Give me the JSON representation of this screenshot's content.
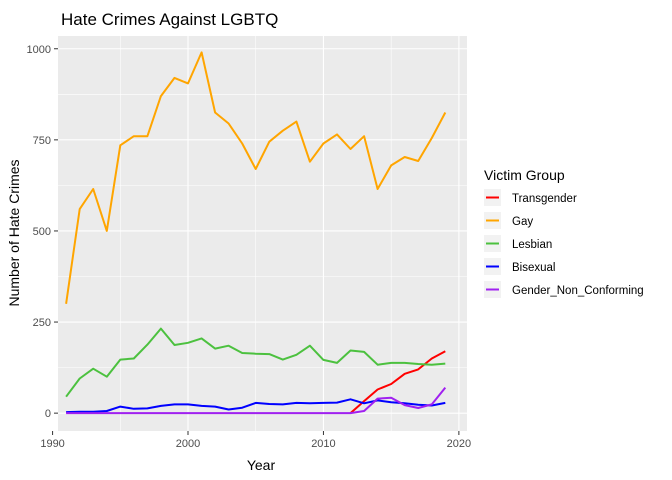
{
  "chart_data": {
    "type": "line",
    "title": "Hate Crimes Against LGBTQ",
    "xlabel": "Year",
    "ylabel": "Number of Hate Crimes",
    "xlim": [
      1990.4,
      2020.6
    ],
    "ylim": [
      -49,
      1035
    ],
    "x_ticks": [
      1990,
      2000,
      2010,
      2020
    ],
    "y_ticks": [
      0,
      250,
      500,
      750,
      1000
    ],
    "grid": true,
    "background": "#ebebeb",
    "legend": {
      "title": "Victim Group",
      "position": "right"
    },
    "series": [
      {
        "name": "Transgender",
        "color": "#ff0000",
        "x": [
          2012,
          2013,
          2014,
          2015,
          2016,
          2017,
          2018,
          2019
        ],
        "y": [
          0,
          33,
          65,
          80,
          108,
          120,
          150,
          170
        ]
      },
      {
        "name": "Gay",
        "color": "#ffa500",
        "x": [
          1991,
          1992,
          1993,
          1994,
          1995,
          1996,
          1997,
          1998,
          1999,
          2000,
          2001,
          2002,
          2003,
          2004,
          2005,
          2006,
          2007,
          2008,
          2009,
          2010,
          2011,
          2012,
          2013,
          2014,
          2015,
          2016,
          2017,
          2018,
          2019
        ],
        "y": [
          300,
          560,
          615,
          500,
          735,
          760,
          760,
          870,
          920,
          905,
          990,
          825,
          795,
          740,
          670,
          745,
          775,
          800,
          690,
          740,
          765,
          725,
          760,
          615,
          680,
          703,
          692,
          755,
          825
        ]
      },
      {
        "name": "Lesbian",
        "color": "#4cc13f",
        "x": [
          1991,
          1992,
          1993,
          1994,
          1995,
          1996,
          1997,
          1998,
          1999,
          2000,
          2001,
          2002,
          2003,
          2004,
          2005,
          2006,
          2007,
          2008,
          2009,
          2010,
          2011,
          2012,
          2013,
          2014,
          2015,
          2016,
          2017,
          2018,
          2019
        ],
        "y": [
          45,
          95,
          122,
          100,
          147,
          150,
          188,
          232,
          187,
          193,
          205,
          177,
          185,
          165,
          163,
          162,
          147,
          160,
          185,
          146,
          138,
          172,
          168,
          133,
          138,
          138,
          135,
          133,
          136
        ]
      },
      {
        "name": "Bisexual",
        "color": "#0000ff",
        "x": [
          1991,
          1992,
          1993,
          1994,
          1995,
          1996,
          1997,
          1998,
          1999,
          2000,
          2001,
          2002,
          2003,
          2004,
          2005,
          2006,
          2007,
          2008,
          2009,
          2010,
          2011,
          2012,
          2013,
          2014,
          2015,
          2016,
          2017,
          2018,
          2019
        ],
        "y": [
          3,
          4,
          4,
          6,
          18,
          12,
          13,
          20,
          24,
          24,
          20,
          18,
          10,
          15,
          28,
          25,
          24,
          28,
          27,
          28,
          29,
          38,
          27,
          35,
          30,
          27,
          23,
          21,
          28
        ]
      },
      {
        "name": "Gender_Non_Conforming",
        "color": "#a020f0",
        "x": [
          1991,
          1992,
          1993,
          1994,
          1995,
          1996,
          1997,
          1998,
          1999,
          2000,
          2001,
          2002,
          2003,
          2004,
          2005,
          2006,
          2007,
          2008,
          2009,
          2010,
          2011,
          2012,
          2013,
          2014,
          2015,
          2016,
          2017,
          2018,
          2019
        ],
        "y": [
          0,
          0,
          0,
          0,
          0,
          0,
          0,
          0,
          0,
          0,
          0,
          0,
          0,
          0,
          0,
          0,
          0,
          0,
          0,
          0,
          0,
          0,
          6,
          40,
          42,
          22,
          14,
          24,
          70
        ]
      }
    ]
  }
}
